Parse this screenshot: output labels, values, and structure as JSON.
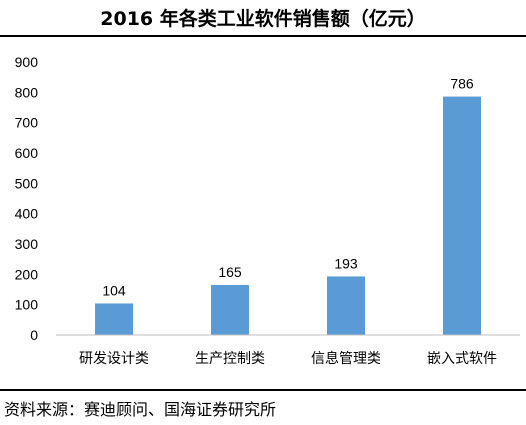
{
  "chart_data": {
    "type": "bar",
    "title": "2016 年各类工业软件销售额（亿元）",
    "categories": [
      "研发设计类",
      "生产控制类",
      "信息管理类",
      "嵌入式软件"
    ],
    "values": [
      104,
      165,
      193,
      786
    ],
    "ylim": [
      0,
      900
    ],
    "yticks": [
      0,
      100,
      200,
      300,
      400,
      500,
      600,
      700,
      800,
      900
    ],
    "xlabel": "",
    "ylabel": "",
    "grid": false,
    "legend": "none",
    "bar_color": "#5B9BD5",
    "data_labels": true
  },
  "source_note": "资料来源：赛迪顾问、国海证券研究所"
}
